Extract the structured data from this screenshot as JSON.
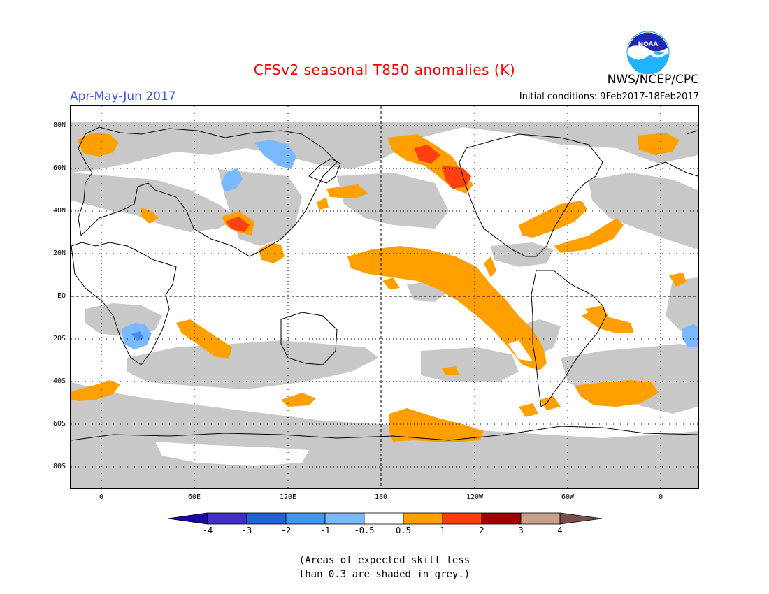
{
  "header": {
    "title": "CFSv2 seasonal T850 anomalies (K)",
    "season": "Apr-May-Jun 2017",
    "source": "NWS/NCEP/CPC",
    "initial_conditions": "Initial conditions: 9Feb2017-18Feb2017",
    "logo_text": "NOAA"
  },
  "map": {
    "lat_labels": [
      "80N",
      "60N",
      "40N",
      "20N",
      "EQ",
      "20S",
      "40S",
      "60S",
      "80S"
    ],
    "lon_labels": [
      "0",
      "60E",
      "120E",
      "180",
      "120W",
      "60W",
      "0"
    ],
    "colors": {
      "grey": "#c8c8c8",
      "orange": "#ffa000",
      "red": "#ff4010",
      "lightblue": "#78b9ff",
      "blue": "#4190f0"
    }
  },
  "colorbar": {
    "labels": [
      "-4",
      "-3",
      "-2",
      "-1",
      "-0.5",
      "0.5",
      "1",
      "2",
      "3",
      "4"
    ],
    "colors": [
      "#1a0aa0",
      "#4030c8",
      "#1e64d2",
      "#4196f0",
      "#78b9ff",
      "#ffffff",
      "#ffa000",
      "#ff3c0a",
      "#a00000",
      "#c8a08c",
      "#785046"
    ]
  },
  "note": {
    "line1": "(Areas of expected skill less",
    "line2": "than 0.3 are shaded in grey.)"
  }
}
